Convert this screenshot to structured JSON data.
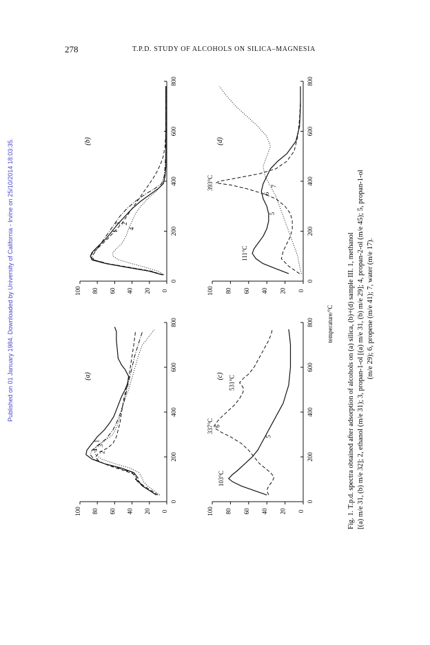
{
  "page": {
    "page_number": "278",
    "running_head": "T.P.D. STUDY OF ALCOHOLS ON SILICA–MAGNESIA",
    "watermark": "Published on 01 January 1984. Downloaded by University of California - Irvine on 25/10/2014 18:03:35."
  },
  "figure": {
    "caption_line1": "Fig. 1. T.p.d. spectra obtained after adsorption of alcohols on (a) silica, (b)+(d) sample III. 1, methanol",
    "caption_line2": "[(a) m/e 31, (b) m/e 32]; 2, ethanol (m/e 31); 3, propan-1-ol [(a) m/e 31, (b) m/e 29]; 4, propan-2-ol (m/e 45); 5, propan-1-ol",
    "caption_line3": "(m/e 29); 6, propene (m/e 41); 7, water (m/e 17).",
    "shared_xlabel": "temperature/°C"
  },
  "chart_data": [
    {
      "type": "line",
      "panel_label": "(a)",
      "xlim": [
        0,
        800
      ],
      "ylim": [
        0,
        100
      ],
      "xticks": [
        "0",
        "200",
        "400",
        "600",
        "800"
      ],
      "yticks": [
        "0",
        "20",
        "40",
        "60",
        "80",
        "100"
      ],
      "series": [
        {
          "name": "1",
          "style": "solid",
          "x": [
            30,
            50,
            70,
            90,
            100,
            110,
            130,
            150,
            170,
            190,
            210,
            230,
            250,
            270,
            290,
            320,
            350,
            380,
            410,
            440,
            470,
            500,
            530,
            560,
            590,
            610,
            640,
            680,
            720,
            760,
            780
          ],
          "y": [
            12,
            20,
            28,
            32,
            36,
            34,
            38,
            52,
            72,
            86,
            93,
            92,
            88,
            84,
            80,
            72,
            66,
            61,
            58,
            55,
            52,
            48,
            45,
            44,
            48,
            52,
            56,
            57,
            58,
            58,
            60
          ]
        },
        {
          "name": "2",
          "style": "dashed",
          "x": [
            30,
            50,
            70,
            90,
            100,
            120,
            140,
            160,
            180,
            200,
            220,
            240,
            260,
            290,
            320,
            350,
            400,
            450,
            500,
            550,
            600,
            650,
            700,
            760
          ],
          "y": [
            10,
            18,
            26,
            33,
            32,
            36,
            50,
            66,
            78,
            82,
            78,
            68,
            62,
            58,
            56,
            54,
            52,
            50,
            47,
            44,
            42,
            40,
            38,
            36
          ]
        },
        {
          "name": "3",
          "style": "dotted",
          "x": [
            30,
            50,
            70,
            90,
            110,
            130,
            150,
            170,
            190,
            210,
            230,
            250,
            270,
            300,
            340,
            380,
            420,
            460,
            500,
            540,
            580,
            620,
            660,
            700,
            740,
            770
          ],
          "y": [
            8,
            15,
            22,
            27,
            29,
            32,
            42,
            60,
            75,
            82,
            84,
            80,
            72,
            62,
            57,
            54,
            51,
            48,
            44,
            41,
            38,
            35,
            32,
            28,
            20,
            14
          ]
        },
        {
          "name": "4",
          "style": "dashdot",
          "x": [
            30,
            50,
            70,
            90,
            110,
            130,
            150,
            170,
            190,
            210,
            230,
            250,
            280,
            320,
            360,
            400,
            450,
            500,
            550,
            600,
            650,
            700,
            760
          ],
          "y": [
            12,
            20,
            28,
            34,
            36,
            40,
            55,
            72,
            84,
            88,
            86,
            80,
            70,
            62,
            57,
            53,
            49,
            46,
            43,
            40,
            37,
            33,
            28
          ]
        }
      ],
      "annotations": [
        "1",
        "2",
        "3",
        "4"
      ]
    },
    {
      "type": "line",
      "panel_label": "(b)",
      "xlim": [
        0,
        800
      ],
      "ylim": [
        0,
        100
      ],
      "xticks": [
        "0",
        "200",
        "400",
        "600",
        "800"
      ],
      "yticks": [
        "0",
        "20",
        "40",
        "60",
        "80",
        "100"
      ],
      "series": [
        {
          "name": "1",
          "style": "solid",
          "x": [
            25,
            40,
            55,
            70,
            85,
            100,
            115,
            130,
            150,
            170,
            200,
            230,
            260,
            290,
            320,
            350,
            370,
            390,
            420,
            460,
            520,
            600,
            700,
            780
          ],
          "y": [
            5,
            20,
            45,
            70,
            86,
            88,
            86,
            82,
            76,
            70,
            63,
            56,
            48,
            40,
            30,
            18,
            10,
            4,
            2,
            1,
            1,
            1,
            1,
            1
          ]
        },
        {
          "name": "2",
          "style": "dashed",
          "x": [
            25,
            40,
            55,
            70,
            85,
            100,
            115,
            130,
            150,
            170,
            200,
            230,
            260,
            290,
            320,
            350,
            380,
            410,
            440,
            470,
            500,
            540,
            600,
            700,
            780
          ],
          "y": [
            4,
            18,
            42,
            68,
            84,
            88,
            85,
            80,
            74,
            68,
            60,
            52,
            46,
            40,
            34,
            28,
            22,
            16,
            11,
            7,
            4,
            2,
            1,
            1,
            1
          ]
        },
        {
          "name": "3",
          "style": "dashdot",
          "x": [
            25,
            40,
            55,
            70,
            85,
            100,
            120,
            140,
            170,
            200,
            230,
            260,
            290,
            320,
            350,
            370,
            390,
            420,
            460,
            520,
            600,
            700,
            780
          ],
          "y": [
            5,
            19,
            44,
            68,
            84,
            86,
            82,
            78,
            72,
            66,
            60,
            54,
            46,
            36,
            24,
            14,
            6,
            3,
            2,
            1,
            1,
            1,
            1
          ]
        },
        {
          "name": "4",
          "style": "dotted",
          "x": [
            25,
            40,
            55,
            70,
            85,
            100,
            115,
            130,
            150,
            180,
            210,
            240,
            270,
            300,
            330,
            360,
            390,
            420,
            460,
            520,
            600,
            700,
            780
          ],
          "y": [
            3,
            10,
            24,
            40,
            55,
            62,
            62,
            58,
            52,
            47,
            44,
            40,
            36,
            30,
            22,
            12,
            5,
            2,
            1,
            1,
            1,
            1,
            1
          ]
        }
      ],
      "annotations": [
        "1",
        "2",
        "3",
        "4"
      ]
    },
    {
      "type": "line",
      "panel_label": "(c)",
      "xlim": [
        0,
        800
      ],
      "ylim": [
        0,
        100
      ],
      "xticks": [
        "0",
        "200",
        "400",
        "600",
        "800"
      ],
      "yticks": [
        "0",
        "20",
        "40",
        "60",
        "80",
        "100"
      ],
      "series": [
        {
          "name": "5",
          "style": "solid",
          "x": [
            30,
            50,
            70,
            90,
            103,
            120,
            140,
            170,
            200,
            230,
            260,
            290,
            320,
            350,
            380,
            410,
            440,
            480,
            520,
            560,
            600,
            650,
            700,
            740,
            770
          ],
          "y": [
            40,
            54,
            68,
            78,
            82,
            78,
            72,
            64,
            56,
            50,
            46,
            42,
            38,
            34,
            30,
            26,
            22,
            19,
            16,
            15,
            14,
            14,
            14,
            15,
            16
          ]
        },
        {
          "name": "6",
          "style": "dashed",
          "x": [
            30,
            50,
            70,
            90,
            110,
            130,
            150,
            170,
            200,
            230,
            260,
            290,
            310,
            325,
            337,
            350,
            370,
            400,
            430,
            460,
            490,
            510,
            531,
            550,
            570,
            600,
            630,
            660,
            690,
            720,
            750,
            770
          ],
          "y": [
            38,
            40,
            38,
            34,
            32,
            36,
            42,
            48,
            54,
            60,
            68,
            80,
            90,
            96,
            98,
            96,
            92,
            84,
            76,
            70,
            66,
            66,
            70,
            66,
            60,
            54,
            50,
            46,
            42,
            38,
            35,
            34
          ]
        }
      ],
      "annotations": [
        "5",
        "6",
        "103°C",
        "337°C",
        "531°C"
      ]
    },
    {
      "type": "line",
      "panel_label": "(d)",
      "xlim": [
        0,
        800
      ],
      "ylim": [
        0,
        100
      ],
      "xticks": [
        "0",
        "200",
        "400",
        "600",
        "800"
      ],
      "yticks": [
        "0",
        "20",
        "40",
        "60",
        "80",
        "100"
      ],
      "series": [
        {
          "name": "5",
          "style": "solid",
          "x": [
            30,
            50,
            70,
            90,
            111,
            130,
            150,
            180,
            210,
            240,
            270,
            300,
            330,
            360,
            390,
            420,
            450,
            480,
            510,
            560,
            620,
            700,
            780
          ],
          "y": [
            16,
            30,
            44,
            52,
            56,
            54,
            50,
            44,
            40,
            38,
            38,
            40,
            44,
            46,
            44,
            40,
            36,
            28,
            18,
            8,
            4,
            3,
            3
          ]
        },
        {
          "name": "6",
          "style": "dashed",
          "x": [
            30,
            60,
            90,
            120,
            150,
            180,
            210,
            240,
            270,
            300,
            330,
            350,
            370,
            385,
            393,
            400,
            415,
            430,
            450,
            480,
            520,
            580,
            650,
            720,
            780
          ],
          "y": [
            4,
            16,
            24,
            22,
            18,
            14,
            12,
            12,
            14,
            20,
            30,
            44,
            62,
            80,
            96,
            92,
            70,
            48,
            30,
            18,
            10,
            6,
            4,
            3,
            3
          ]
        },
        {
          "name": "7",
          "style": "dotted",
          "x": [
            30,
            60,
            100,
            140,
            180,
            220,
            260,
            300,
            340,
            380,
            420,
            460,
            500,
            540,
            580,
            620,
            660,
            700,
            740,
            780
          ],
          "y": [
            2,
            4,
            6,
            10,
            14,
            18,
            22,
            26,
            30,
            36,
            42,
            44,
            40,
            36,
            40,
            50,
            62,
            74,
            84,
            92
          ]
        }
      ],
      "annotations": [
        "5",
        "6",
        "7",
        "111°C",
        "393°C"
      ]
    }
  ]
}
